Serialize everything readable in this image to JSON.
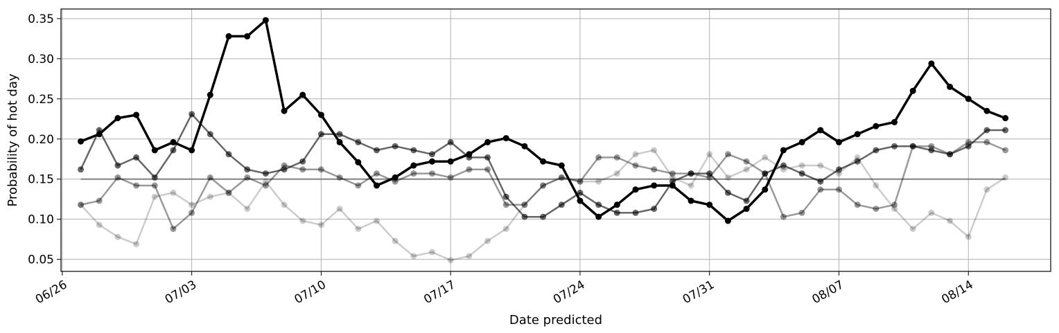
{
  "chart_data": {
    "type": "line",
    "title": "",
    "xlabel": "Date predicted",
    "ylabel": "Probability of hot day",
    "x_axis": {
      "kind": "date",
      "ticks": [
        "06/26",
        "07/03",
        "07/10",
        "07/17",
        "07/24",
        "07/31",
        "08/07",
        "08/14"
      ],
      "range": [
        "06/26",
        "08/16"
      ]
    },
    "y_axis": {
      "ticks": [
        "0.05",
        "0.10",
        "0.15",
        "0.20",
        "0.25",
        "0.30",
        "0.35"
      ],
      "ylim": [
        0.035,
        0.362
      ]
    },
    "grid": true,
    "legend": "none",
    "dates": [
      "06/27",
      "06/28",
      "06/29",
      "06/30",
      "07/01",
      "07/02",
      "07/03",
      "07/04",
      "07/05",
      "07/06",
      "07/07",
      "07/08",
      "07/09",
      "07/10",
      "07/11",
      "07/12",
      "07/13",
      "07/14",
      "07/15",
      "07/16",
      "07/17",
      "07/18",
      "07/19",
      "07/20",
      "07/21",
      "07/22",
      "07/23",
      "07/24",
      "07/25",
      "07/26",
      "07/27",
      "07/28",
      "07/29",
      "07/30",
      "07/31",
      "08/01",
      "08/02",
      "08/03",
      "08/04",
      "08/05",
      "08/06",
      "08/07",
      "08/08",
      "08/09",
      "08/10",
      "08/11",
      "08/12",
      "08/13",
      "08/14",
      "08/15",
      "08/16"
    ],
    "series": [
      {
        "color": "#000000",
        "opacity": 1.0,
        "width": 3.5,
        "values": [
          0.197,
          0.206,
          0.226,
          0.23,
          0.186,
          0.196,
          0.186,
          0.255,
          0.328,
          0.328,
          0.348,
          0.235,
          0.255,
          0.23,
          0.196,
          0.171,
          0.142,
          0.152,
          0.167,
          0.172,
          0.172,
          0.181,
          0.196,
          0.201,
          0.191,
          0.172,
          0.167,
          0.123,
          0.103,
          0.118,
          0.137,
          0.142,
          0.142,
          0.123,
          0.118,
          0.098,
          0.113,
          0.137,
          0.186,
          0.196,
          0.211,
          0.196,
          0.206,
          0.216,
          0.221,
          0.26,
          0.294,
          0.265,
          0.25,
          0.235,
          0.226
        ]
      },
      {
        "color": "#000000",
        "opacity": 0.6,
        "width": 2.5,
        "values": [
          0.162,
          0.211,
          0.167,
          0.177,
          0.152,
          0.186,
          0.231,
          0.206,
          0.181,
          0.162,
          0.157,
          0.162,
          0.172,
          0.206,
          0.206,
          0.196,
          0.186,
          0.191,
          0.186,
          0.181,
          0.196,
          0.177,
          0.177,
          0.128,
          0.103,
          0.103,
          0.118,
          0.133,
          0.118,
          0.108,
          0.108,
          0.113,
          0.147,
          0.157,
          0.157,
          0.133,
          0.123,
          0.157,
          0.167,
          0.157,
          0.147,
          0.162,
          0.172,
          0.186,
          0.191,
          0.191,
          0.186,
          0.181,
          0.191,
          0.211,
          0.211
        ]
      },
      {
        "color": "#000000",
        "opacity": 0.4,
        "width": 2.5,
        "values": [
          0.118,
          0.123,
          0.152,
          0.142,
          0.142,
          0.088,
          0.108,
          0.152,
          0.133,
          0.152,
          0.142,
          0.167,
          0.162,
          0.162,
          0.152,
          0.142,
          0.157,
          0.147,
          0.157,
          0.157,
          0.152,
          0.162,
          0.162,
          0.118,
          0.118,
          0.142,
          0.152,
          0.147,
          0.177,
          0.177,
          0.167,
          0.162,
          0.157,
          0.157,
          0.152,
          0.181,
          0.172,
          0.157,
          0.103,
          0.108,
          0.137,
          0.137,
          0.118,
          0.113,
          0.118,
          0.191,
          0.191,
          0.181,
          0.196,
          0.196,
          0.186
        ]
      },
      {
        "color": "#000000",
        "opacity": 0.2,
        "width": 2.5,
        "values": [
          0.118,
          0.093,
          0.078,
          0.069,
          0.128,
          0.133,
          0.118,
          0.128,
          0.133,
          0.113,
          0.147,
          0.118,
          0.098,
          0.093,
          0.113,
          0.088,
          0.098,
          0.073,
          0.054,
          0.059,
          0.049,
          0.054,
          0.073,
          0.088,
          0.118,
          0.142,
          0.152,
          0.147,
          0.147,
          0.157,
          0.181,
          0.186,
          0.152,
          0.142,
          0.181,
          0.152,
          0.162,
          0.177,
          0.162,
          0.167,
          0.167,
          0.157,
          0.177,
          0.142,
          0.113,
          0.088,
          0.108,
          0.098,
          0.078,
          0.137,
          0.152
        ]
      }
    ],
    "reference_line": {
      "y": 0.15,
      "from": "06/27",
      "to": "08/16",
      "color": "#808080"
    }
  }
}
